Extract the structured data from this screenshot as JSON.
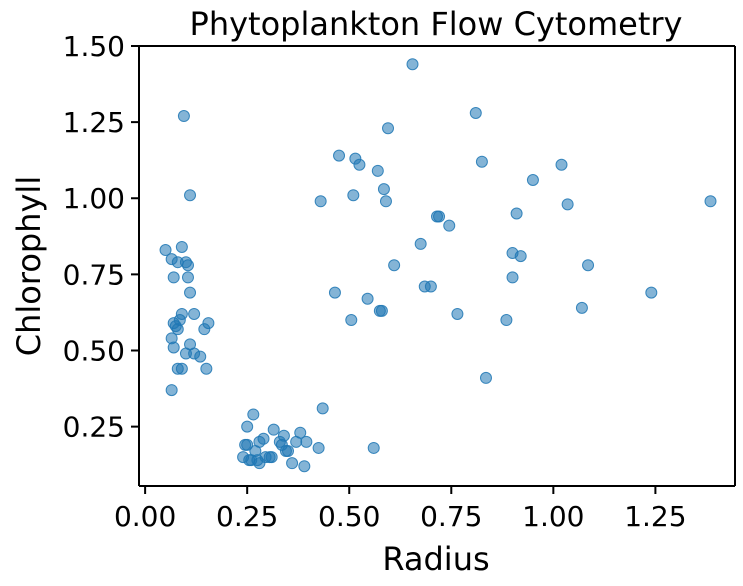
{
  "chart_data": {
    "type": "scatter",
    "title": "Phytoplankton Flow Cytometry",
    "xlabel": "Radius",
    "ylabel": "Chlorophyll",
    "xlim": [
      -0.015,
      1.445
    ],
    "ylim": [
      0.055,
      1.5
    ],
    "xticks": [
      "0.00",
      "0.25",
      "0.50",
      "0.75",
      "1.00",
      "1.25"
    ],
    "yticks": [
      "0.25",
      "0.50",
      "0.75",
      "1.00",
      "1.25",
      "1.50"
    ],
    "grid": false,
    "color": "#1f77b4",
    "opacity": 0.55,
    "series": [
      {
        "points": [
          [
            0.05,
            0.83
          ],
          [
            0.09,
            0.84
          ],
          [
            0.065,
            0.8
          ],
          [
            0.08,
            0.79
          ],
          [
            0.1,
            0.79
          ],
          [
            0.105,
            0.78
          ],
          [
            0.07,
            0.74
          ],
          [
            0.105,
            0.74
          ],
          [
            0.11,
            0.69
          ],
          [
            0.12,
            0.62
          ],
          [
            0.09,
            0.62
          ],
          [
            0.085,
            0.6
          ],
          [
            0.075,
            0.58
          ],
          [
            0.07,
            0.59
          ],
          [
            0.155,
            0.59
          ],
          [
            0.145,
            0.57
          ],
          [
            0.08,
            0.57
          ],
          [
            0.065,
            0.54
          ],
          [
            0.11,
            0.52
          ],
          [
            0.07,
            0.51
          ],
          [
            0.1,
            0.49
          ],
          [
            0.12,
            0.49
          ],
          [
            0.135,
            0.48
          ],
          [
            0.08,
            0.44
          ],
          [
            0.09,
            0.44
          ],
          [
            0.15,
            0.44
          ],
          [
            0.065,
            0.37
          ],
          [
            0.095,
            1.27
          ],
          [
            0.11,
            1.01
          ],
          [
            0.24,
            0.15
          ],
          [
            0.245,
            0.19
          ],
          [
            0.25,
            0.19
          ],
          [
            0.25,
            0.25
          ],
          [
            0.255,
            0.14
          ],
          [
            0.26,
            0.14
          ],
          [
            0.265,
            0.29
          ],
          [
            0.27,
            0.17
          ],
          [
            0.275,
            0.14
          ],
          [
            0.28,
            0.13
          ],
          [
            0.28,
            0.2
          ],
          [
            0.29,
            0.21
          ],
          [
            0.295,
            0.15
          ],
          [
            0.305,
            0.15
          ],
          [
            0.31,
            0.15
          ],
          [
            0.315,
            0.24
          ],
          [
            0.33,
            0.2
          ],
          [
            0.335,
            0.19
          ],
          [
            0.34,
            0.22
          ],
          [
            0.345,
            0.17
          ],
          [
            0.35,
            0.17
          ],
          [
            0.36,
            0.13
          ],
          [
            0.37,
            0.2
          ],
          [
            0.38,
            0.23
          ],
          [
            0.39,
            0.12
          ],
          [
            0.395,
            0.2
          ],
          [
            0.425,
            0.18
          ],
          [
            0.435,
            0.31
          ],
          [
            0.43,
            0.99
          ],
          [
            0.465,
            0.69
          ],
          [
            0.475,
            1.14
          ],
          [
            0.505,
            0.6
          ],
          [
            0.51,
            1.01
          ],
          [
            0.515,
            1.13
          ],
          [
            0.525,
            1.11
          ],
          [
            0.545,
            0.67
          ],
          [
            0.56,
            0.18
          ],
          [
            0.57,
            1.09
          ],
          [
            0.575,
            0.63
          ],
          [
            0.58,
            0.63
          ],
          [
            0.585,
            1.03
          ],
          [
            0.59,
            0.99
          ],
          [
            0.595,
            1.23
          ],
          [
            0.61,
            0.78
          ],
          [
            0.655,
            1.44
          ],
          [
            0.675,
            0.85
          ],
          [
            0.685,
            0.71
          ],
          [
            0.7,
            0.71
          ],
          [
            0.715,
            0.94
          ],
          [
            0.72,
            0.94
          ],
          [
            0.745,
            0.91
          ],
          [
            0.765,
            0.62
          ],
          [
            0.81,
            1.28
          ],
          [
            0.825,
            1.12
          ],
          [
            0.835,
            0.41
          ],
          [
            0.885,
            0.6
          ],
          [
            0.9,
            0.82
          ],
          [
            0.9,
            0.74
          ],
          [
            0.91,
            0.95
          ],
          [
            0.92,
            0.81
          ],
          [
            0.95,
            1.06
          ],
          [
            1.02,
            1.11
          ],
          [
            1.035,
            0.98
          ],
          [
            1.07,
            0.64
          ],
          [
            1.085,
            0.78
          ],
          [
            1.24,
            0.69
          ],
          [
            1.385,
            0.99
          ]
        ]
      }
    ]
  }
}
